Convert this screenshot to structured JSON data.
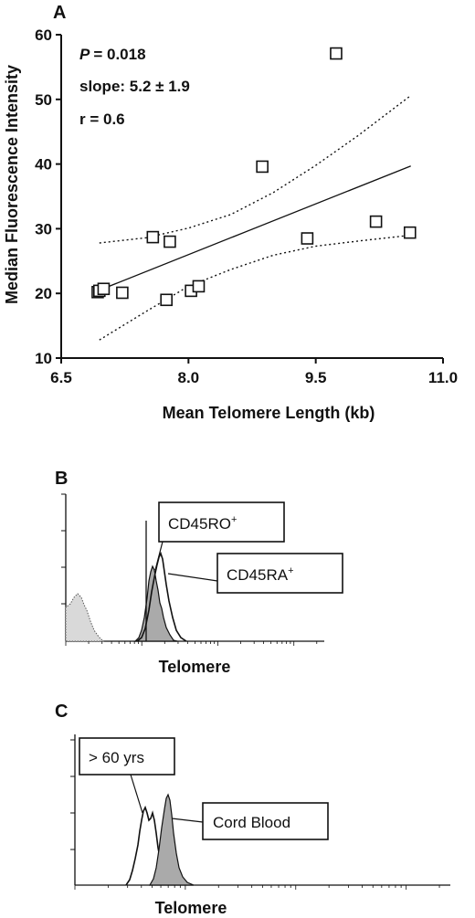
{
  "chart_data": [
    {
      "panel": "A",
      "type": "scatter",
      "xlabel": "Mean Telomere Length (kb)",
      "ylabel": "Median Fluorescence Intensity",
      "xlim": [
        6.5,
        11.0
      ],
      "ylim": [
        10,
        60
      ],
      "xticks": [
        "6.5",
        "8.0",
        "9.5",
        "11.0"
      ],
      "yticks": [
        "10",
        "20",
        "30",
        "40",
        "50",
        "60"
      ],
      "annotations": {
        "p_italic": "P",
        "p_value": "= 0.018",
        "slope": "slope: 5.2 ± 1.9",
        "r": "r = 0.6"
      },
      "points": [
        {
          "x": 6.93,
          "y": 20.2
        },
        {
          "x": 6.95,
          "y": 20.4
        },
        {
          "x": 7.0,
          "y": 20.7
        },
        {
          "x": 7.22,
          "y": 20.1
        },
        {
          "x": 7.58,
          "y": 28.7
        },
        {
          "x": 7.74,
          "y": 19.0
        },
        {
          "x": 7.78,
          "y": 28.0
        },
        {
          "x": 8.03,
          "y": 20.4
        },
        {
          "x": 8.12,
          "y": 21.1
        },
        {
          "x": 8.87,
          "y": 39.6
        },
        {
          "x": 9.4,
          "y": 28.5
        },
        {
          "x": 9.74,
          "y": 57.1
        },
        {
          "x": 10.21,
          "y": 31.1
        },
        {
          "x": 10.61,
          "y": 29.4
        }
      ],
      "regression_line": {
        "x": [
          6.95,
          10.62
        ],
        "y": [
          20.5,
          39.7
        ]
      },
      "ci_upper": {
        "x": [
          6.95,
          7.5,
          8.0,
          8.5,
          9.0,
          9.5,
          10.0,
          10.62
        ],
        "y": [
          27.8,
          28.6,
          30.1,
          32.2,
          35.6,
          39.8,
          44.4,
          50.6
        ]
      },
      "ci_lower": {
        "x": [
          6.95,
          7.5,
          8.0,
          8.5,
          9.0,
          9.5,
          10.0,
          10.62
        ],
        "y": [
          12.8,
          17.2,
          21.1,
          23.7,
          25.9,
          27.3,
          28.1,
          29.0
        ]
      },
      "grid": false
    },
    {
      "panel": "B",
      "type": "area",
      "xlabel": "Telomere",
      "series": [
        {
          "name": "CD45RO+",
          "fill": "#aaaaaa"
        },
        {
          "name": "CD45RA+",
          "fill": "none"
        }
      ],
      "labels": [
        {
          "text": "CD45RO",
          "sup": "+"
        },
        {
          "text": "CD45RA",
          "sup": "+"
        }
      ]
    },
    {
      "panel": "C",
      "type": "area",
      "xlabel": "Telomere",
      "series": [
        {
          "name": "> 60 yrs",
          "fill": "none"
        },
        {
          "name": "Cord Blood",
          "fill": "#aaaaaa"
        }
      ],
      "labels": [
        {
          "text": "> 60 yrs"
        },
        {
          "text": "Cord Blood"
        }
      ]
    }
  ]
}
